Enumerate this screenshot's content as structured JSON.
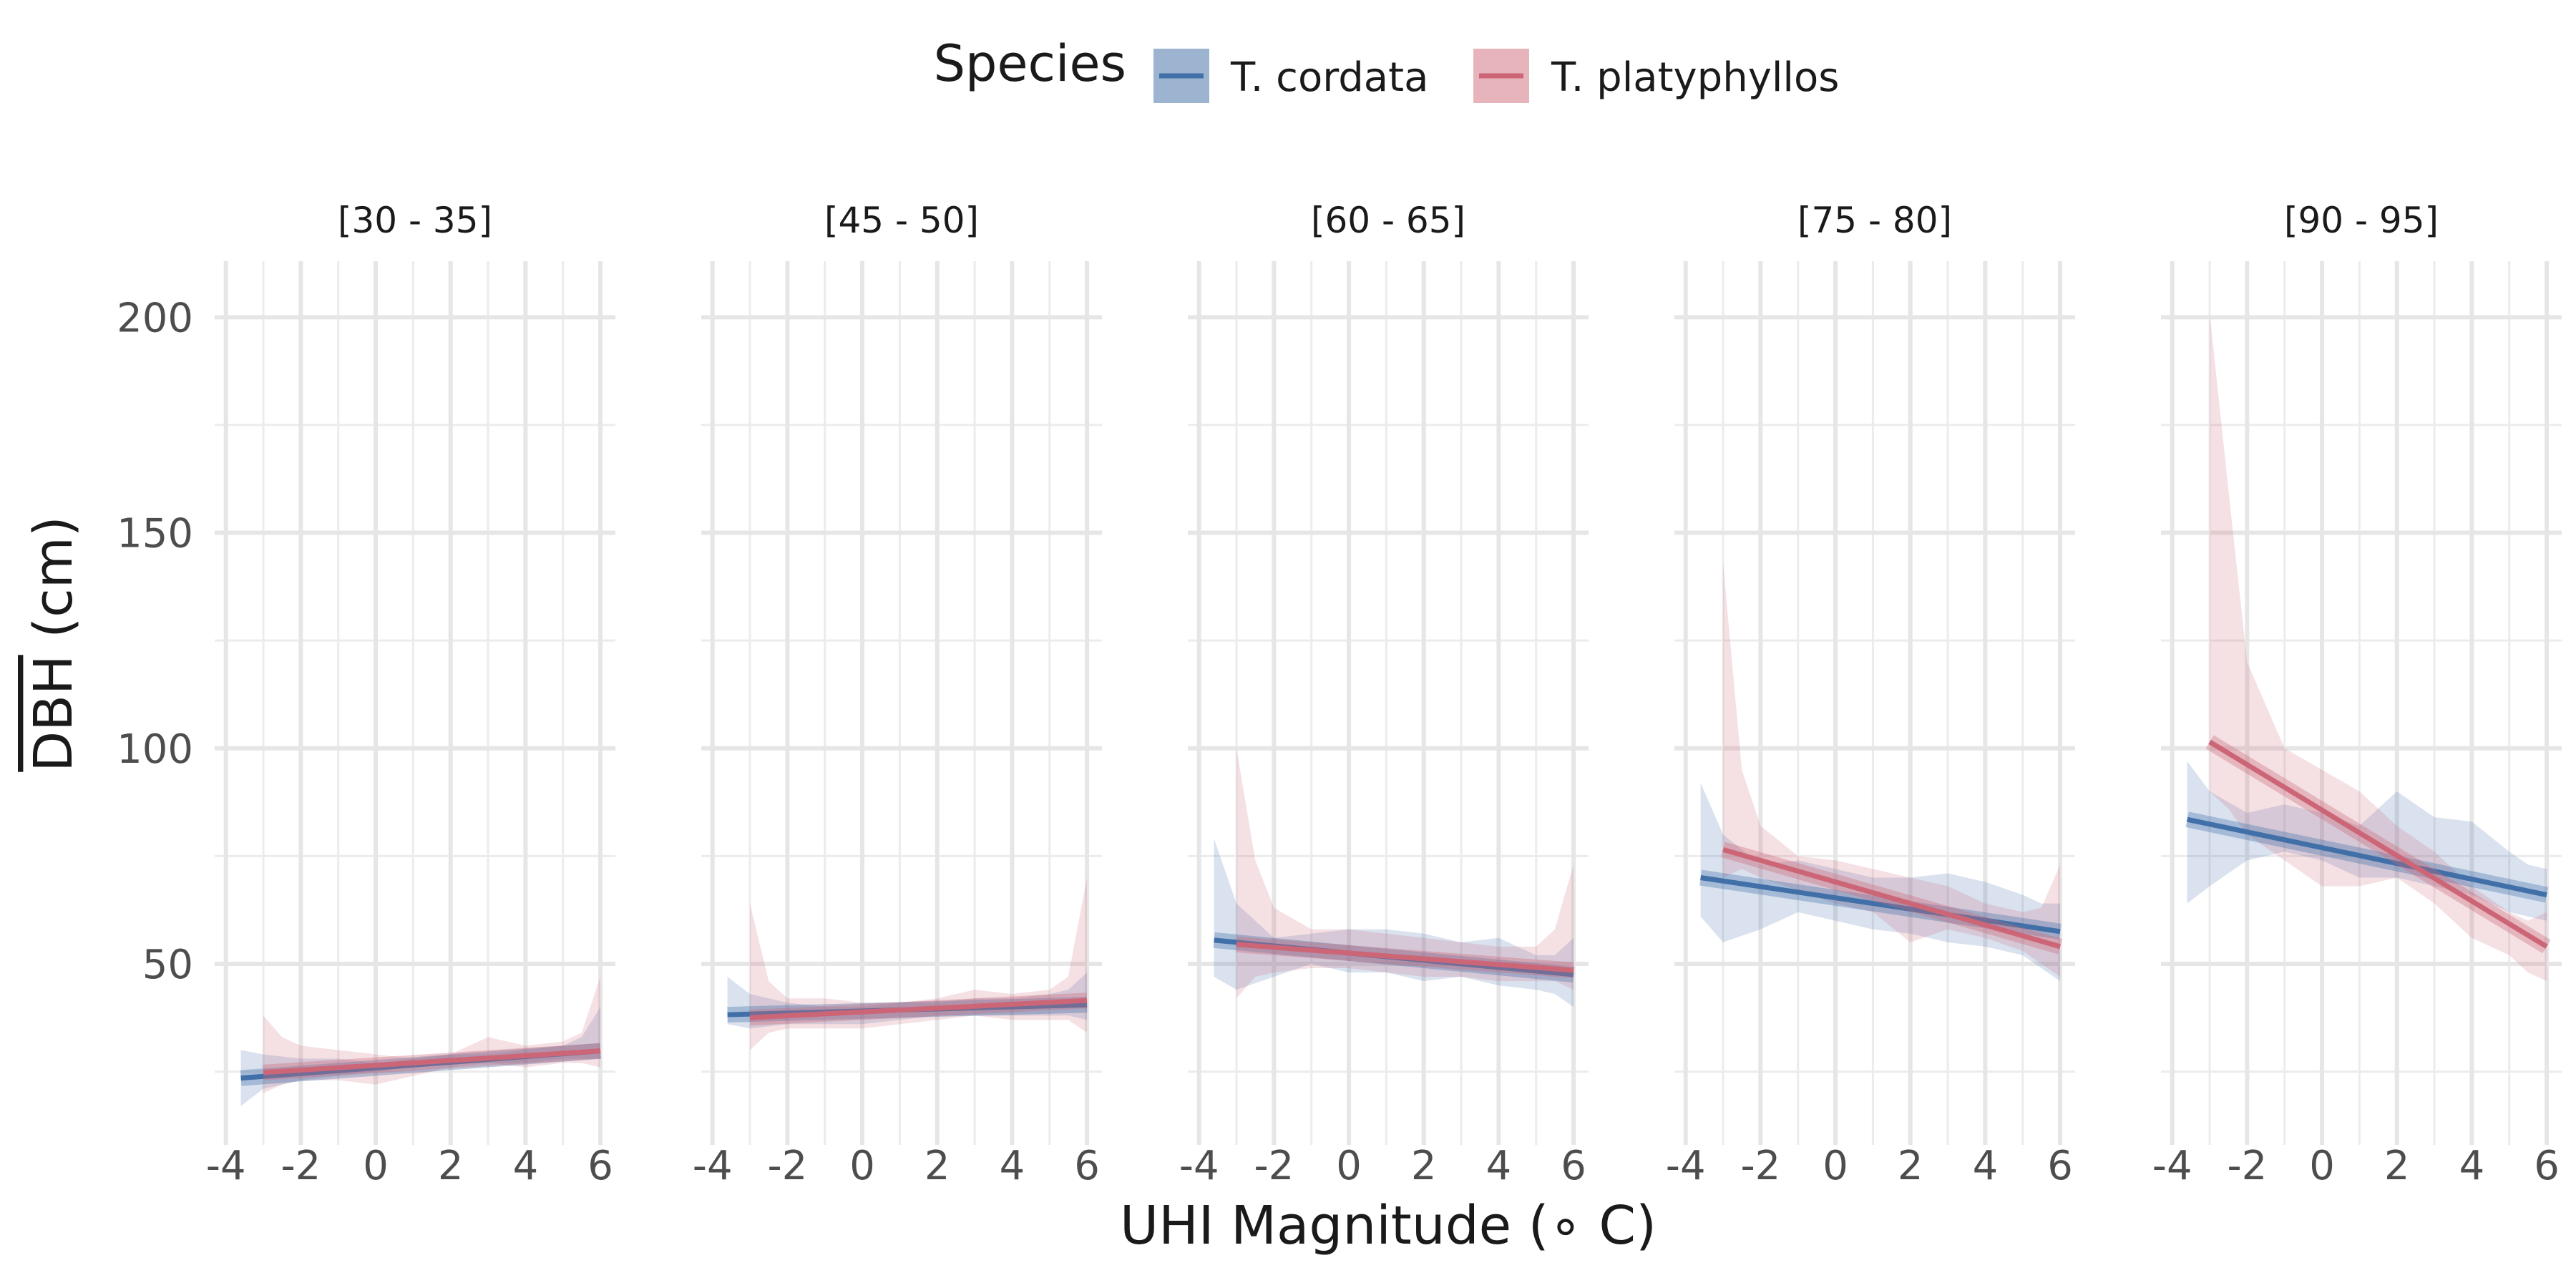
{
  "legend": {
    "title": "Species",
    "items": [
      {
        "label": "T. cordata",
        "color": "#4170a8",
        "fill": "#9cb4d0"
      },
      {
        "label": "T. platyphyllos",
        "color": "#cc6677",
        "fill": "#e8b4bc"
      }
    ]
  },
  "axes": {
    "xlabel": "UHI Magnitude (∘ C)",
    "ylabel_overlined": "DBH",
    "ylabel_rest": " (cm)"
  },
  "chart_data": {
    "type": "line",
    "xlim": [
      -4.3,
      6.4
    ],
    "ylim": [
      8,
      213
    ],
    "x_ticks": [
      -4,
      -2,
      0,
      2,
      4,
      6
    ],
    "x_tick_labels": [
      "-4",
      "-2",
      "0",
      "2",
      "4",
      "6"
    ],
    "y_ticks": [
      50,
      100,
      150,
      200
    ],
    "y_tick_labels": [
      "50",
      "100",
      "150",
      "200"
    ],
    "legend_position": "top",
    "grid": true,
    "panels": [
      {
        "label": "[30 - 35]",
        "series": [
          {
            "name": "T. cordata",
            "trend": [
              [
                -3.6,
                23.5
              ],
              [
                6.0,
                29.8
              ]
            ],
            "band_x": [
              -3.6,
              -3,
              -2,
              -1,
              0,
              1,
              2,
              3,
              4,
              5,
              5.5,
              6
            ],
            "band_lower": [
              17,
              21,
              23,
              24,
              25,
              26,
              27,
              27,
              27,
              28,
              28,
              28
            ],
            "band_upper": [
              30,
              29,
              28,
              28,
              27,
              28,
              29,
              29,
              30,
              31,
              33,
              40
            ]
          },
          {
            "name": "T. platyphyllos",
            "trend": [
              [
                -3.0,
                24.8
              ],
              [
                6.0,
                29.8
              ]
            ],
            "band_x": [
              -3,
              -2.5,
              -2,
              -1,
              0,
              1,
              2,
              3,
              4,
              5,
              5.5,
              6
            ],
            "band_lower": [
              20,
              22,
              23,
              23,
              22,
              24,
              26,
              27,
              26,
              27,
              27,
              26
            ],
            "band_upper": [
              38,
              33,
              31,
              30,
              29,
              28,
              29,
              33,
              31,
              32,
              34,
              47
            ]
          }
        ]
      },
      {
        "label": "[45 - 50]",
        "series": [
          {
            "name": "T. cordata",
            "trend": [
              [
                -3.6,
                38.2
              ],
              [
                6.0,
                40.5
              ]
            ],
            "band_x": [
              -3.6,
              -3,
              -2,
              -1,
              0,
              1,
              2,
              3,
              4,
              5,
              5.5,
              6
            ],
            "band_lower": [
              36,
              35,
              36,
              36,
              36,
              37,
              38,
              38,
              38,
              38,
              38,
              37
            ],
            "band_upper": [
              47,
              43,
              41,
              40,
              40,
              41,
              41,
              42,
              42,
              43,
              44,
              48
            ]
          },
          {
            "name": "T. platyphyllos",
            "trend": [
              [
                -3.0,
                37.5
              ],
              [
                6.0,
                41.5
              ]
            ],
            "band_x": [
              -3,
              -2.5,
              -2,
              -1,
              0,
              1,
              2,
              3,
              4,
              5,
              5.5,
              6
            ],
            "band_lower": [
              30,
              34,
              35,
              35,
              35,
              36,
              37,
              38,
              37,
              37,
              37,
              34
            ],
            "band_upper": [
              64,
              46,
              42,
              42,
              41,
              41,
              42,
              44,
              43,
              44,
              47,
              70
            ]
          }
        ]
      },
      {
        "label": "[60 - 65]",
        "series": [
          {
            "name": "T. cordata",
            "trend": [
              [
                -3.6,
                55.5
              ],
              [
                6.0,
                47.5
              ]
            ],
            "band_x": [
              -3.6,
              -3,
              -2,
              -1,
              0,
              1,
              2,
              3,
              4,
              5,
              5.5,
              6
            ],
            "band_lower": [
              47,
              44,
              47,
              50,
              48,
              48,
              46,
              47,
              45,
              44,
              43,
              40
            ],
            "band_upper": [
              79,
              64,
              56,
              57,
              58,
              58,
              57,
              55,
              56,
              52,
              52,
              56
            ]
          },
          {
            "name": "T. platyphyllos",
            "trend": [
              [
                -3.0,
                54.5
              ],
              [
                6.0,
                48.5
              ]
            ],
            "band_x": [
              -3,
              -2.5,
              -2,
              -1,
              0,
              1,
              2,
              3,
              4,
              5,
              5.5,
              6
            ],
            "band_lower": [
              42,
              47,
              48,
              49,
              49,
              48,
              47,
              47,
              46,
              46,
              46,
              44
            ],
            "band_upper": [
              100,
              74,
              63,
              58,
              58,
              57,
              56,
              55,
              54,
              54,
              58,
              73
            ]
          }
        ]
      },
      {
        "label": "[75 - 80]",
        "series": [
          {
            "name": "T. cordata",
            "trend": [
              [
                -3.6,
                70.0
              ],
              [
                6.0,
                57.5
              ]
            ],
            "band_x": [
              -3.6,
              -3,
              -2,
              -1,
              0,
              1,
              2,
              3,
              4,
              5,
              5.5,
              6
            ],
            "band_lower": [
              61,
              55,
              58,
              62,
              60,
              58,
              57,
              55,
              54,
              52,
              49,
              46
            ],
            "band_upper": [
              92,
              80,
              73,
              74,
              72,
              70,
              70,
              71,
              69,
              66,
              64,
              64
            ]
          },
          {
            "name": "T. platyphyllos",
            "trend": [
              [
                -3.0,
                76.5
              ],
              [
                6.0,
                54.0
              ]
            ],
            "band_x": [
              -3,
              -2.5,
              -2,
              -1,
              0,
              1,
              2,
              3,
              4,
              5,
              5.5,
              6
            ],
            "band_lower": [
              70,
              72,
              70,
              67,
              64,
              62,
              55,
              58,
              56,
              53,
              50,
              47
            ],
            "band_upper": [
              143,
              95,
              82,
              75,
              74,
              72,
              70,
              68,
              64,
              62,
              63,
              73
            ]
          }
        ]
      },
      {
        "label": "[90 - 95]",
        "series": [
          {
            "name": "T. cordata",
            "trend": [
              [
                -3.6,
                83.5
              ],
              [
                6.0,
                66.0
              ]
            ],
            "band_x": [
              -3.6,
              -3,
              -2,
              -1,
              0,
              1,
              2,
              3,
              4,
              5,
              5.5,
              6
            ],
            "band_lower": [
              64,
              68,
              74,
              76,
              74,
              70,
              70,
              68,
              66,
              62,
              61,
              60
            ],
            "band_upper": [
              97,
              90,
              85,
              87,
              85,
              82,
              90,
              84,
              83,
              76,
              73,
              72
            ]
          },
          {
            "name": "T. platyphyllos",
            "trend": [
              [
                -3.0,
                101.5
              ],
              [
                6.0,
                54.0
              ]
            ],
            "band_x": [
              -3,
              -2.5,
              -2,
              -1,
              0,
              1,
              2,
              3,
              4,
              5,
              5.5,
              6
            ],
            "band_lower": [
              90,
              86,
              80,
              74,
              68,
              68,
              70,
              64,
              56,
              52,
              48,
              46
            ],
            "band_upper": [
              201,
              160,
              120,
              100,
              95,
              90,
              82,
              76,
              68,
              62,
              60,
              62
            ]
          }
        ]
      }
    ]
  }
}
